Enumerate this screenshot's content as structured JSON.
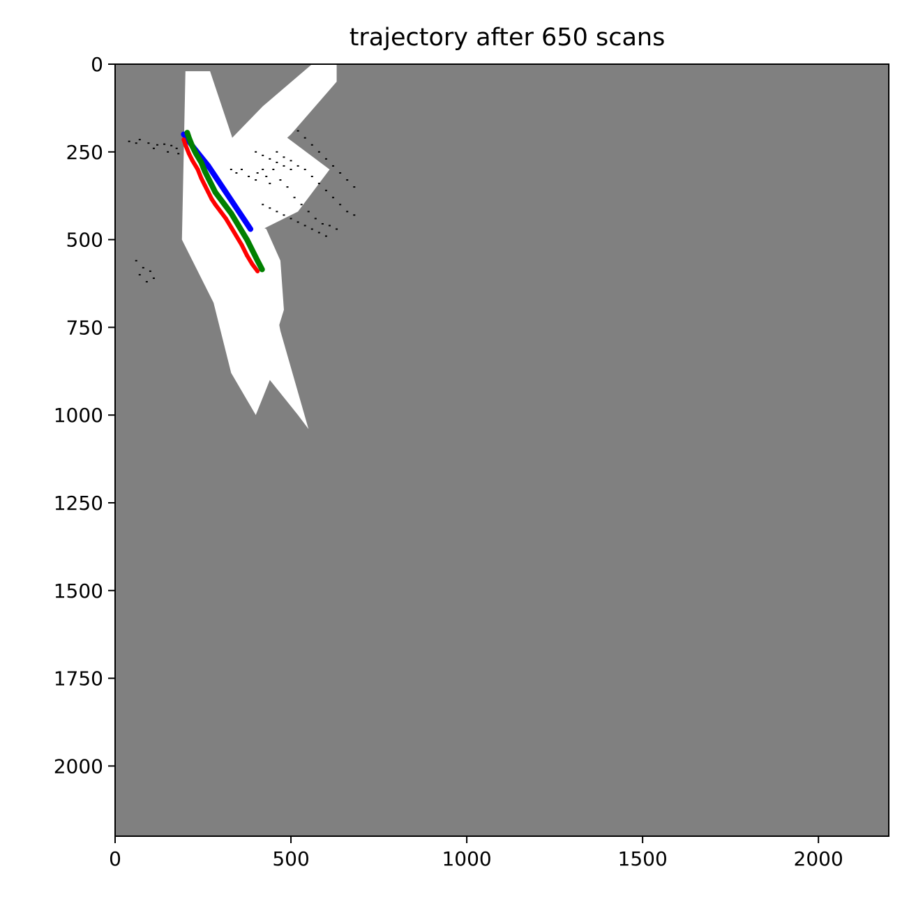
{
  "chart_data": {
    "type": "image",
    "title": "trajectory after 650 scans",
    "xlabel": "",
    "ylabel": "",
    "xlim": [
      0,
      2200
    ],
    "ylim": [
      2200,
      0
    ],
    "y_inverted": true,
    "grid": false,
    "x_ticks": [
      0,
      500,
      1000,
      1500,
      2000
    ],
    "x_tick_labels": [
      "0",
      "500",
      "1000",
      "1500",
      "2000"
    ],
    "y_ticks": [
      0,
      250,
      500,
      750,
      1000,
      1250,
      1500,
      1750,
      2000
    ],
    "y_tick_labels": [
      "0",
      "250",
      "500",
      "750",
      "1000",
      "1250",
      "1500",
      "1750",
      "2000"
    ],
    "colors": {
      "unknown": "#808080",
      "free": "#ffffff",
      "occupied": "#000000",
      "trajectory_blue": "#0000ff",
      "trajectory_green": "#008000",
      "trajectory_red": "#ff0000"
    },
    "free_regions": [
      [
        [
          200,
          20
        ],
        [
          270,
          20
        ],
        [
          330,
          200
        ],
        [
          420,
          500
        ],
        [
          470,
          760
        ],
        [
          550,
          1040
        ],
        [
          520,
          1000
        ],
        [
          440,
          900
        ],
        [
          400,
          1000
        ],
        [
          330,
          880
        ],
        [
          280,
          680
        ],
        [
          190,
          500
        ],
        [
          195,
          260
        ]
      ],
      [
        [
          265,
          280
        ],
        [
          420,
          120
        ],
        [
          560,
          0
        ],
        [
          630,
          0
        ],
        [
          630,
          50
        ],
        [
          500,
          200
        ],
        [
          380,
          310
        ],
        [
          320,
          400
        ]
      ],
      [
        [
          300,
          250
        ],
        [
          450,
          180
        ],
        [
          610,
          300
        ],
        [
          520,
          420
        ],
        [
          420,
          470
        ],
        [
          330,
          420
        ]
      ],
      [
        [
          330,
          420
        ],
        [
          430,
          470
        ],
        [
          470,
          560
        ],
        [
          480,
          700
        ],
        [
          440,
          830
        ],
        [
          380,
          760
        ]
      ]
    ],
    "occupied_points": [
      [
        40,
        220
      ],
      [
        70,
        215
      ],
      [
        95,
        225
      ],
      [
        120,
        230
      ],
      [
        140,
        228
      ],
      [
        160,
        232
      ],
      [
        175,
        240
      ],
      [
        180,
        255
      ],
      [
        150,
        250
      ],
      [
        110,
        240
      ],
      [
        60,
        225
      ],
      [
        330,
        300
      ],
      [
        345,
        310
      ],
      [
        360,
        300
      ],
      [
        380,
        320
      ],
      [
        400,
        330
      ],
      [
        405,
        310
      ],
      [
        420,
        300
      ],
      [
        430,
        320
      ],
      [
        440,
        340
      ],
      [
        460,
        250
      ],
      [
        480,
        265
      ],
      [
        500,
        275
      ],
      [
        520,
        290
      ],
      [
        540,
        300
      ],
      [
        560,
        320
      ],
      [
        580,
        340
      ],
      [
        600,
        360
      ],
      [
        620,
        380
      ],
      [
        640,
        400
      ],
      [
        660,
        420
      ],
      [
        680,
        430
      ],
      [
        450,
        300
      ],
      [
        470,
        330
      ],
      [
        490,
        350
      ],
      [
        510,
        380
      ],
      [
        530,
        400
      ],
      [
        550,
        420
      ],
      [
        570,
        440
      ],
      [
        590,
        455
      ],
      [
        610,
        460
      ],
      [
        630,
        470
      ],
      [
        420,
        400
      ],
      [
        440,
        410
      ],
      [
        460,
        420
      ],
      [
        480,
        430
      ],
      [
        500,
        440
      ],
      [
        520,
        450
      ],
      [
        540,
        460
      ],
      [
        560,
        470
      ],
      [
        580,
        480
      ],
      [
        600,
        490
      ],
      [
        520,
        190
      ],
      [
        540,
        210
      ],
      [
        560,
        230
      ],
      [
        580,
        250
      ],
      [
        600,
        270
      ],
      [
        620,
        290
      ],
      [
        640,
        310
      ],
      [
        660,
        330
      ],
      [
        680,
        350
      ],
      [
        400,
        250
      ],
      [
        420,
        260
      ],
      [
        440,
        270
      ],
      [
        460,
        280
      ],
      [
        480,
        290
      ],
      [
        500,
        300
      ],
      [
        60,
        560
      ],
      [
        80,
        580
      ],
      [
        100,
        590
      ],
      [
        110,
        610
      ],
      [
        90,
        620
      ],
      [
        70,
        600
      ]
    ],
    "series": [
      {
        "color": "blue",
        "x": [
          195,
          200,
          210,
          225,
          245,
          265,
          285,
          305,
          325,
          345,
          365,
          385
        ],
        "y": [
          200,
          205,
          220,
          240,
          265,
          290,
          320,
          350,
          380,
          410,
          440,
          470
        ]
      },
      {
        "color": "red",
        "x": [
          195,
          200,
          210,
          220,
          235,
          245,
          255,
          265,
          275,
          285,
          300,
          315,
          330,
          345,
          360,
          375,
          390,
          405
        ],
        "y": [
          215,
          230,
          255,
          275,
          300,
          325,
          345,
          365,
          385,
          400,
          420,
          440,
          465,
          490,
          515,
          545,
          570,
          590
        ]
      },
      {
        "color": "green",
        "x": [
          205,
          210,
          220,
          230,
          245,
          255,
          265,
          275,
          285,
          300,
          315,
          330,
          345,
          360,
          375,
          390,
          405,
          418
        ],
        "y": [
          195,
          210,
          235,
          255,
          280,
          305,
          325,
          345,
          365,
          385,
          405,
          425,
          450,
          475,
          500,
          530,
          560,
          585
        ]
      }
    ]
  }
}
